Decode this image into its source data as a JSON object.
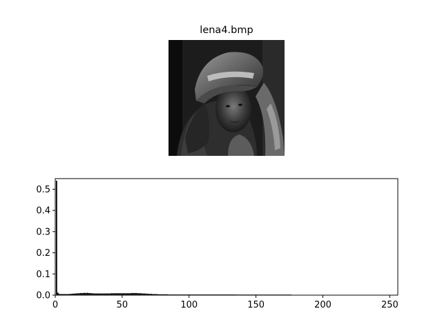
{
  "image_panel": {
    "title": "lena4.bmp"
  },
  "chart_data": {
    "type": "bar",
    "title": "",
    "xlabel": "",
    "ylabel": "",
    "xlim": [
      0,
      256
    ],
    "ylim": [
      0,
      0.55
    ],
    "xticks": [
      0,
      50,
      100,
      150,
      200,
      250
    ],
    "yticks": [
      0.0,
      0.1,
      0.2,
      0.3,
      0.4,
      0.5
    ],
    "xtick_labels": [
      "0",
      "50",
      "100",
      "150",
      "200",
      "250"
    ],
    "ytick_labels": [
      "0.0",
      "0.1",
      "0.2",
      "0.3",
      "0.4",
      "0.5"
    ],
    "grid": false,
    "legend": "none",
    "bar_color": "#000000",
    "x": [
      0,
      1,
      2,
      3,
      4,
      5,
      6,
      7,
      8,
      9,
      10,
      11,
      12,
      13,
      14,
      15,
      16,
      17,
      18,
      19,
      20,
      21,
      22,
      23,
      24,
      25,
      26,
      27,
      28,
      29,
      30,
      31,
      32,
      33,
      34,
      35,
      36,
      37,
      38,
      39,
      40,
      41,
      42,
      43,
      44,
      45,
      46,
      47,
      48,
      49,
      50,
      51,
      52,
      53,
      54,
      55,
      56,
      57,
      58,
      59,
      60,
      61,
      62,
      63,
      64,
      65,
      66,
      67,
      68,
      69,
      70,
      71,
      72,
      73,
      74,
      75,
      76,
      77,
      78,
      79,
      80,
      81,
      82,
      83,
      84,
      85,
      86,
      87,
      88,
      89,
      90,
      91,
      92,
      93,
      94,
      95,
      96,
      97,
      98,
      99,
      100,
      101,
      102,
      103,
      104,
      105,
      106,
      107,
      108,
      109,
      110,
      111,
      112,
      113,
      114,
      115,
      116,
      117,
      118,
      119,
      120,
      121,
      122,
      123,
      124,
      125,
      126,
      127,
      128,
      129,
      130,
      131,
      132,
      133,
      134,
      135,
      136,
      137,
      138,
      139,
      140,
      141,
      142,
      143,
      144,
      145,
      146,
      147,
      148,
      149,
      150,
      151,
      152,
      153,
      154,
      155,
      156,
      157,
      158,
      159,
      160,
      161,
      162,
      163,
      164,
      165,
      166,
      167,
      168,
      169,
      170,
      171,
      172,
      173,
      174,
      175
    ],
    "values": [
      0.54,
      0.012,
      0.006,
      0.005,
      0.005,
      0.005,
      0.005,
      0.005,
      0.005,
      0.005,
      0.006,
      0.006,
      0.007,
      0.007,
      0.008,
      0.008,
      0.009,
      0.009,
      0.01,
      0.01,
      0.01,
      0.011,
      0.01,
      0.011,
      0.01,
      0.01,
      0.009,
      0.009,
      0.008,
      0.008,
      0.008,
      0.008,
      0.008,
      0.008,
      0.008,
      0.008,
      0.008,
      0.008,
      0.008,
      0.008,
      0.008,
      0.009,
      0.009,
      0.009,
      0.009,
      0.009,
      0.009,
      0.009,
      0.009,
      0.009,
      0.009,
      0.009,
      0.009,
      0.009,
      0.009,
      0.009,
      0.01,
      0.01,
      0.01,
      0.01,
      0.01,
      0.009,
      0.009,
      0.009,
      0.008,
      0.008,
      0.008,
      0.007,
      0.007,
      0.006,
      0.006,
      0.006,
      0.005,
      0.005,
      0.005,
      0.005,
      0.004,
      0.004,
      0.004,
      0.004,
      0.004,
      0.004,
      0.004,
      0.004,
      0.003,
      0.003,
      0.003,
      0.003,
      0.003,
      0.003,
      0.003,
      0.003,
      0.003,
      0.003,
      0.003,
      0.003,
      0.003,
      0.003,
      0.003,
      0.003,
      0.003,
      0.003,
      0.003,
      0.003,
      0.003,
      0.003,
      0.003,
      0.003,
      0.003,
      0.003,
      0.003,
      0.003,
      0.003,
      0.003,
      0.003,
      0.003,
      0.003,
      0.003,
      0.003,
      0.003,
      0.003,
      0.003,
      0.003,
      0.003,
      0.003,
      0.003,
      0.003,
      0.003,
      0.003,
      0.003,
      0.003,
      0.003,
      0.003,
      0.003,
      0.001,
      0.001,
      0.001,
      0.001,
      0.001,
      0.001,
      0.001,
      0.001,
      0.001,
      0.001,
      0.001,
      0.001,
      0.001,
      0.001,
      0.001,
      0.001,
      0.001,
      0.001,
      0.001,
      0.001,
      0.001,
      0.001,
      0.001,
      0.001,
      0.001,
      0.001,
      0.001,
      0.001,
      0.001,
      0.001,
      0.001,
      0.001,
      0.001,
      0.001,
      0.001,
      0.001,
      0.001,
      0.001,
      0.001,
      0.001,
      0.001,
      0.001
    ]
  }
}
